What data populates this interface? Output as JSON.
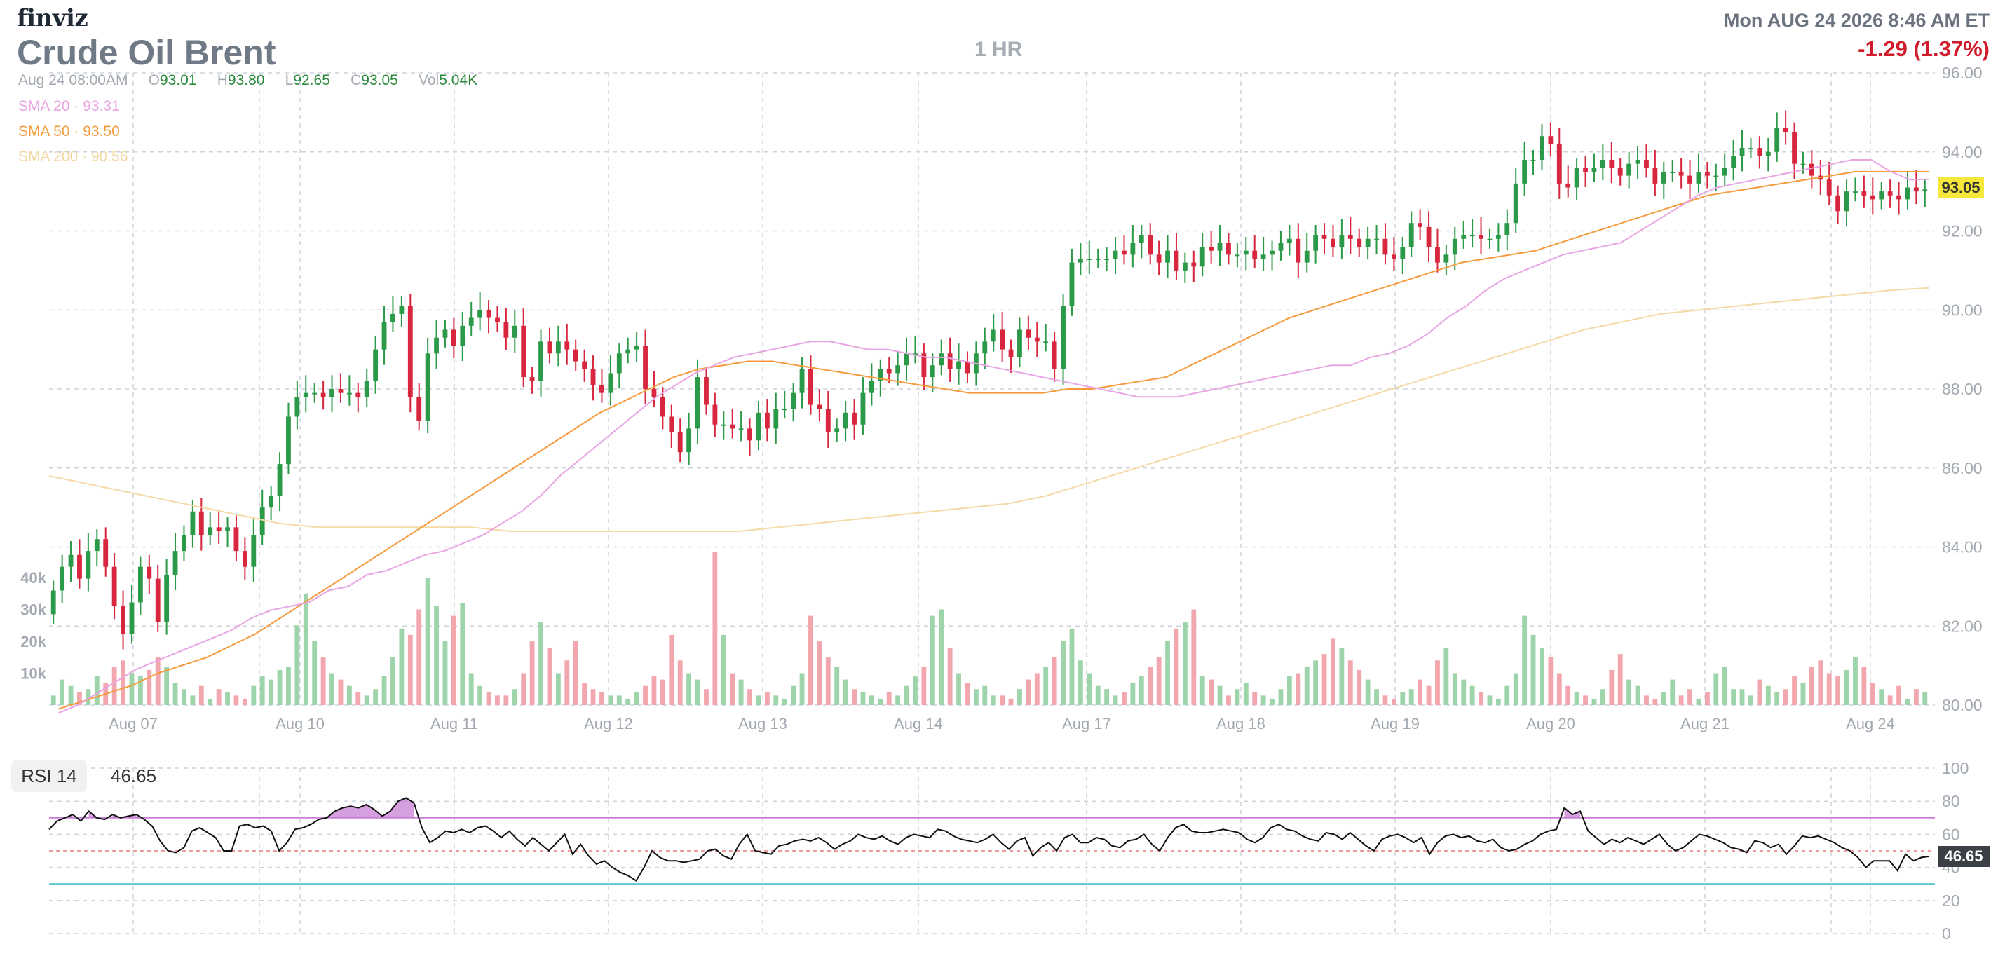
{
  "header": {
    "brand": "finviz",
    "title": "Crude Oil Brent",
    "timeframe": "1 HR",
    "datetime": "Mon AUG 24 2026 8:46 AM ET",
    "change": "-1.29 (1.37%)"
  },
  "ohlc": {
    "date": "Aug 24 08:00AM",
    "o_label": "O",
    "o": "93.01",
    "h_label": "H",
    "h": "93.80",
    "l_label": "L",
    "l": "92.65",
    "c_label": "C",
    "c": "93.05",
    "vol_label": "Vol",
    "vol": "5.04K"
  },
  "indicators": {
    "sma20_label": "SMA 20",
    "sma20_value": "93.31",
    "sma50_label": "SMA 50",
    "sma50_value": "93.50",
    "sma200_label": "SMA 200",
    "sma200_value": "90.56",
    "sep": "·"
  },
  "rsi": {
    "label": "RSI 14",
    "value": "46.65"
  },
  "colors": {
    "up": "#2b9a48",
    "down": "#d7263d",
    "vol_up": "#9ed4a9",
    "vol_down": "#f2a6ae",
    "sma20": "#e9a5e3",
    "sma50": "#f59a3d",
    "sma200": "#f5d9a6",
    "rsi_line": "#111111",
    "rsi_over": "#c77fd6",
    "rsi_under": "#55c3d4",
    "rsi_mid": "#e87a7a",
    "grid": "#cfd3d8",
    "axis_text": "#a3a9b1",
    "last_price_bg": "#f5e83a"
  },
  "chart_data": [
    {
      "type": "candlestick",
      "title": "Crude Oil Brent",
      "x_tick_labels": [
        "Aug 07",
        "Aug 10",
        "Aug 11",
        "Aug 12",
        "Aug 13",
        "Aug 14",
        "Aug 17",
        "Aug 18",
        "Aug 19",
        "Aug 20",
        "Aug 21",
        "Aug 24"
      ],
      "y_tick_labels": [
        "80.00",
        "82.00",
        "84.00",
        "86.00",
        "88.00",
        "90.00",
        "92.00",
        "94.00",
        "96.00"
      ],
      "ylim": [
        80,
        96
      ],
      "volume_tick_labels": [
        "10k",
        "20k",
        "30k",
        "40k"
      ],
      "last_price": "93.05",
      "closes": [
        82.9,
        83.5,
        83.8,
        83.2,
        83.9,
        84.2,
        83.5,
        82.5,
        81.8,
        82.6,
        83.5,
        83.2,
        82.1,
        83.3,
        83.9,
        84.3,
        84.9,
        84.3,
        84.5,
        84.4,
        84.5,
        83.9,
        83.5,
        84.3,
        85.0,
        85.3,
        86.1,
        87.3,
        87.8,
        87.9,
        87.9,
        87.8,
        88.0,
        87.9,
        87.9,
        87.8,
        88.2,
        89.0,
        89.7,
        89.9,
        90.1,
        87.8,
        87.2,
        88.9,
        89.3,
        89.5,
        89.1,
        89.6,
        89.8,
        90.0,
        89.8,
        89.7,
        89.3,
        89.6,
        88.3,
        88.2,
        89.2,
        88.9,
        89.2,
        89.0,
        88.7,
        88.5,
        88.1,
        87.9,
        88.4,
        88.9,
        89.0,
        89.1,
        88.0,
        87.8,
        87.3,
        86.9,
        86.4,
        87.0,
        88.3,
        87.6,
        87.1,
        87.1,
        87.0,
        87.0,
        86.7,
        87.4,
        87.0,
        87.5,
        87.5,
        87.9,
        88.5,
        87.6,
        87.5,
        86.9,
        87.0,
        87.4,
        87.1,
        87.9,
        88.2,
        88.5,
        88.4,
        88.6,
        88.9,
        88.9,
        88.3,
        88.6,
        88.9,
        88.5,
        88.7,
        88.4,
        88.9,
        89.2,
        89.5,
        89.0,
        88.8,
        89.5,
        89.3,
        89.2,
        89.2,
        88.5,
        90.1,
        91.2,
        91.3,
        91.3,
        91.3,
        91.3,
        91.5,
        91.4,
        91.7,
        91.9,
        91.4,
        91.2,
        91.5,
        91.0,
        91.2,
        91.1,
        91.6,
        91.5,
        91.7,
        91.4,
        91.4,
        91.5,
        91.3,
        91.4,
        91.5,
        91.7,
        91.8,
        91.2,
        91.5,
        91.9,
        91.8,
        91.6,
        91.9,
        91.8,
        91.6,
        91.8,
        91.8,
        91.4,
        91.3,
        91.6,
        92.2,
        92.1,
        91.6,
        91.2,
        91.4,
        91.8,
        91.9,
        91.9,
        91.8,
        91.8,
        91.9,
        92.2,
        93.2,
        93.8,
        93.8,
        94.4,
        94.2,
        93.2,
        93.1,
        93.6,
        93.5,
        93.6,
        93.8,
        93.6,
        93.4,
        93.7,
        93.8,
        93.6,
        93.2,
        93.5,
        93.5,
        93.4,
        93.2,
        93.5,
        93.4,
        93.4,
        93.6,
        93.9,
        94.1,
        94.1,
        93.9,
        94.0,
        94.6,
        94.5,
        93.7,
        93.7,
        93.4,
        93.3,
        92.9,
        92.5,
        93.0,
        93.0,
        92.9,
        92.8,
        93.0,
        92.9,
        92.8,
        93.1,
        93.0,
        93.05
      ],
      "sma20": [
        79.8,
        80.0,
        80.3,
        80.6,
        80.9,
        81.1,
        81.3,
        81.5,
        81.7,
        81.9,
        82.2,
        82.4,
        82.5,
        82.6,
        82.9,
        83.0,
        83.3,
        83.4,
        83.6,
        83.8,
        83.9,
        84.1,
        84.3,
        84.6,
        84.9,
        85.3,
        85.8,
        86.2,
        86.6,
        87.0,
        87.4,
        87.8,
        88.1,
        88.4,
        88.6,
        88.8,
        88.9,
        89.0,
        89.1,
        89.2,
        89.2,
        89.1,
        89.0,
        89.0,
        88.9,
        88.8,
        88.8,
        88.7,
        88.6,
        88.5,
        88.4,
        88.3,
        88.2,
        88.1,
        88.0,
        87.9,
        87.8,
        87.8,
        87.8,
        87.9,
        88.0,
        88.1,
        88.2,
        88.3,
        88.4,
        88.5,
        88.6,
        88.6,
        88.8,
        88.9,
        89.1,
        89.4,
        89.8,
        90.1,
        90.5,
        90.8,
        91.0,
        91.2,
        91.4,
        91.5,
        91.6,
        91.7,
        92.0,
        92.3,
        92.6,
        92.9,
        93.1,
        93.2,
        93.3,
        93.4,
        93.5,
        93.6,
        93.7,
        93.8,
        93.8,
        93.5,
        93.3,
        93.31
      ],
      "sma50": [
        79.9,
        80.1,
        80.3,
        80.5,
        80.8,
        81.0,
        81.2,
        81.5,
        81.8,
        82.2,
        82.6,
        83.0,
        83.4,
        83.8,
        84.2,
        84.6,
        85.0,
        85.4,
        85.8,
        86.2,
        86.6,
        87.0,
        87.4,
        87.7,
        88.0,
        88.3,
        88.5,
        88.6,
        88.7,
        88.7,
        88.6,
        88.5,
        88.4,
        88.3,
        88.2,
        88.1,
        88.0,
        87.9,
        87.9,
        87.9,
        87.9,
        88.0,
        88.0,
        88.1,
        88.2,
        88.3,
        88.6,
        88.9,
        89.2,
        89.5,
        89.8,
        90.0,
        90.2,
        90.4,
        90.6,
        90.8,
        91.0,
        91.2,
        91.3,
        91.4,
        91.5,
        91.7,
        91.9,
        92.1,
        92.3,
        92.5,
        92.7,
        92.9,
        93.0,
        93.1,
        93.2,
        93.3,
        93.4,
        93.5,
        93.5,
        93.5,
        93.5
      ],
      "sma200": [
        85.8,
        85.6,
        85.4,
        85.2,
        85.0,
        84.8,
        84.6,
        84.5,
        84.5,
        84.5,
        84.5,
        84.5,
        84.4,
        84.4,
        84.4,
        84.4,
        84.4,
        84.4,
        84.4,
        84.5,
        84.6,
        84.7,
        84.8,
        84.9,
        85.0,
        85.1,
        85.3,
        85.6,
        85.9,
        86.2,
        86.5,
        86.8,
        87.1,
        87.4,
        87.7,
        88.0,
        88.3,
        88.6,
        88.9,
        89.2,
        89.5,
        89.7,
        89.9,
        90.0,
        90.1,
        90.2,
        90.3,
        90.4,
        90.5,
        90.56
      ],
      "volume": [
        3,
        8,
        6,
        4,
        5,
        9,
        7,
        12,
        14,
        10,
        9,
        11,
        15,
        12,
        7,
        5,
        3,
        6,
        2,
        5,
        4,
        3,
        2,
        6,
        9,
        8,
        11,
        12,
        25,
        35,
        20,
        15,
        10,
        8,
        6,
        4,
        3,
        5,
        9,
        15,
        24,
        22,
        30,
        40,
        31,
        20,
        28,
        32,
        10,
        6,
        4,
        3,
        3,
        5,
        10,
        20,
        26,
        18,
        10,
        14,
        20,
        7,
        5,
        4,
        3,
        3,
        2,
        4,
        6,
        9,
        8,
        22,
        14,
        10,
        8,
        5,
        48,
        22,
        10,
        8,
        5,
        3,
        4,
        3,
        2,
        6,
        10,
        28,
        20,
        15,
        12,
        8,
        5,
        4,
        3,
        2,
        4,
        3,
        6,
        9,
        12,
        28,
        30,
        18,
        10,
        7,
        5,
        6,
        3,
        3,
        2,
        5,
        8,
        10,
        12,
        15,
        20,
        24,
        14,
        10,
        6,
        5,
        3,
        4,
        7,
        9,
        12,
        15,
        20,
        24,
        26,
        30,
        9,
        8,
        6,
        3,
        5,
        7,
        4,
        3,
        2,
        5,
        9,
        10,
        12,
        14,
        16,
        21,
        18,
        14,
        11,
        8,
        5,
        3,
        2,
        4,
        5,
        8,
        6,
        14,
        18,
        10,
        8,
        6,
        4,
        3,
        2,
        6,
        10,
        28,
        22,
        18,
        15,
        10,
        6,
        4,
        3,
        2,
        5,
        11,
        16,
        8,
        6,
        3,
        2,
        4,
        8,
        3,
        5,
        2,
        4,
        10,
        12,
        5,
        5
      ]
    },
    {
      "type": "line",
      "title": "RSI 14",
      "y_tick_labels": [
        "0",
        "20",
        "40",
        "60",
        "80",
        "100"
      ],
      "ylim": [
        0,
        100
      ],
      "overbought": 70,
      "oversold": 30,
      "midline": 50,
      "values": [
        63,
        68,
        70,
        72,
        68,
        74,
        70,
        69,
        72,
        70,
        71,
        72,
        69,
        65,
        56,
        50,
        49,
        52,
        62,
        64,
        61,
        58,
        50,
        50,
        65,
        66,
        64,
        65,
        62,
        50,
        55,
        63,
        64,
        66,
        69,
        70,
        74,
        76,
        77,
        76,
        78,
        75,
        71,
        74,
        80,
        82,
        79,
        64,
        55,
        58,
        62,
        61,
        63,
        61,
        64,
        65,
        62,
        58,
        62,
        57,
        53,
        58,
        54,
        50,
        55,
        60,
        48,
        54,
        47,
        42,
        44,
        40,
        37,
        35,
        32,
        40,
        50,
        46,
        44,
        44,
        43,
        44,
        45,
        50,
        51,
        47,
        45,
        54,
        60,
        50,
        49,
        48,
        53,
        54,
        56,
        57,
        56,
        58,
        55,
        51,
        54,
        56,
        60,
        58,
        57,
        59,
        56,
        54,
        58,
        60,
        59,
        58,
        63,
        62,
        59,
        57,
        56,
        55,
        57,
        60,
        55,
        51,
        56,
        58,
        47,
        52,
        55,
        50,
        58,
        60,
        55,
        55,
        58,
        57,
        53,
        52,
        56,
        57,
        60,
        54,
        50,
        58,
        64,
        66,
        62,
        61,
        61,
        62,
        63,
        62,
        61,
        57,
        55,
        58,
        64,
        66,
        63,
        62,
        59,
        57,
        56,
        61,
        60,
        57,
        61,
        57,
        53,
        50,
        57,
        59,
        60,
        58,
        55,
        58,
        48,
        55,
        59,
        60,
        58,
        59,
        56,
        55,
        57,
        52,
        50,
        51,
        54,
        56,
        60,
        62,
        63,
        76,
        72,
        74,
        62,
        58,
        54,
        57,
        55,
        58,
        56,
        54,
        57,
        60,
        54,
        50,
        52,
        56,
        60,
        59,
        57,
        55,
        52,
        51,
        49,
        56,
        55,
        52,
        54,
        48,
        53,
        59,
        58,
        59,
        57,
        55,
        52,
        50,
        46,
        40,
        44,
        44,
        44,
        38,
        48,
        44,
        46,
        46.65
      ]
    }
  ]
}
